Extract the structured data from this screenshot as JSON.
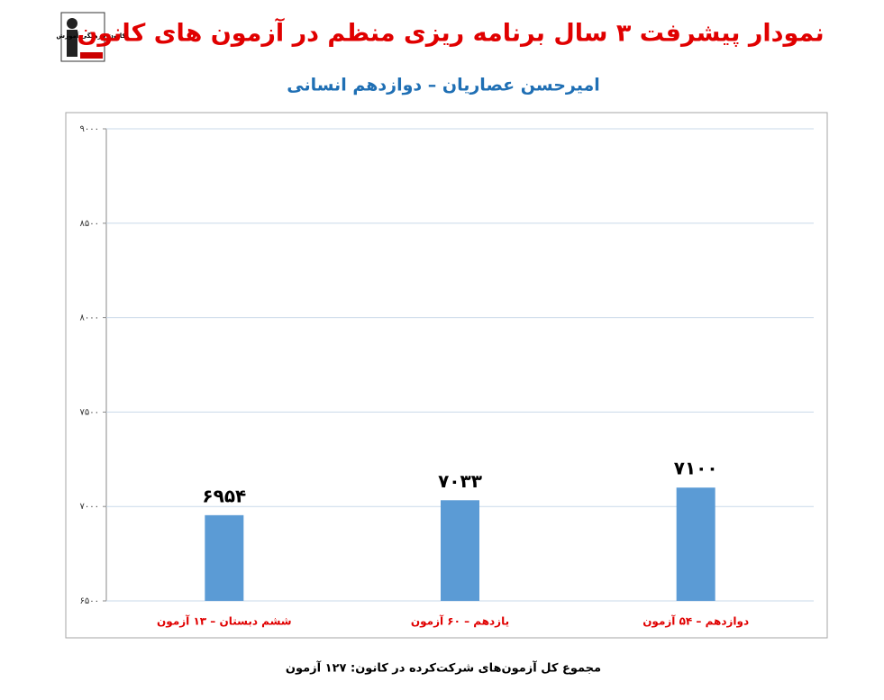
{
  "logo_text": "کانون فرهنگی آموزش",
  "chart_data": {
    "type": "bar",
    "title": "نمودار پیشرفت ۳ سال برنامه ریزی منظم در آزمون های کانون",
    "subtitle": "امیرحسن عصاریان – دوازدهم انسانی",
    "footnote": "مجموع کل آزمون‌های شرکت‌کرده در کانون: ۱۲۷ آزمون",
    "categories": [
      "ششم دبستان – ۱۳ آزمون",
      "یازدهم – ۶۰ آزمون",
      "دوازدهم – ۵۴ آزمون"
    ],
    "values": [
      6954,
      7033,
      7100
    ],
    "value_labels": [
      "۶۹۵۴",
      "۷۰۳۳",
      "۷۱۰۰"
    ],
    "color": "#5b9bd5",
    "ylim": [
      6500,
      9000
    ],
    "yticks": [
      {
        "value": 6500,
        "label": "۶۵۰۰"
      },
      {
        "value": 7000,
        "label": "۷۰۰۰"
      },
      {
        "value": 7500,
        "label": "۷۵۰۰"
      },
      {
        "value": 8000,
        "label": "۸۰۰۰"
      },
      {
        "value": 8500,
        "label": "۸۵۰۰"
      },
      {
        "value": 9000,
        "label": "۹۰۰۰"
      }
    ],
    "grid": true
  }
}
